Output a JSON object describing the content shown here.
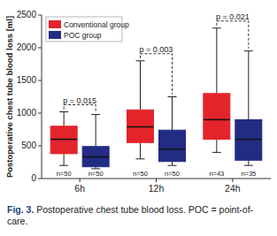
{
  "chart_data": {
    "type": "box",
    "y_label": "Postoperative chest tube blood loss [ml]",
    "categories": [
      "6h",
      "12h",
      "24h"
    ],
    "series": [
      {
        "name": "Conventional group",
        "color": "#e3242b",
        "values": [
          {
            "min": 200,
            "q1": 380,
            "median": 600,
            "q3": 800,
            "max": 1020
          },
          {
            "min": 300,
            "q1": 550,
            "median": 790,
            "q3": 1050,
            "max": 1800
          },
          {
            "min": 400,
            "q1": 600,
            "median": 900,
            "q3": 1300,
            "max": 2300
          }
        ],
        "n_labels": [
          "n=50",
          "n=50",
          "n=43"
        ]
      },
      {
        "name": "POC group",
        "color": "#232c84",
        "values": [
          {
            "min": 150,
            "q1": 180,
            "median": 330,
            "q3": 490,
            "max": 980
          },
          {
            "min": 200,
            "q1": 260,
            "median": 450,
            "q3": 740,
            "max": 1250
          },
          {
            "min": 200,
            "q1": 280,
            "median": 600,
            "q3": 900,
            "max": 1950
          }
        ],
        "n_labels": [
          "n=50",
          "n=50",
          "n=35"
        ]
      }
    ],
    "p_values": [
      "p = 0.015",
      "p = 0.003",
      "p = 0.021"
    ],
    "ylim": [
      0,
      2500
    ],
    "yticks": [
      0,
      500,
      1000,
      1500,
      2000,
      2500
    ],
    "grid": false,
    "legend": "top-left",
    "caption": {
      "prefix": "Fig. 3.",
      "text": "Postoperative chest tube blood loss. POC = point-of-care."
    }
  }
}
